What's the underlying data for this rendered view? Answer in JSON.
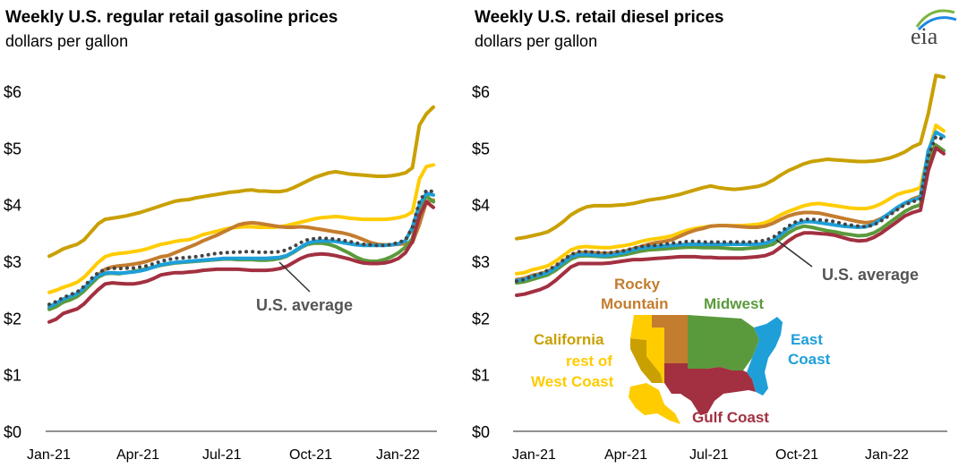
{
  "logo": {
    "text": "eia"
  },
  "colors": {
    "california": "#C9A000",
    "rest_west": "#FFCC00",
    "rocky": "#C47C2E",
    "midwest": "#5A9A3C",
    "east": "#1E9FD8",
    "gulf": "#A23040",
    "us": "#444444"
  },
  "map_labels": {
    "rocky": [
      "Rocky",
      "Mountain"
    ],
    "midwest": "Midwest",
    "east": [
      "East",
      "Coast"
    ],
    "california": "California",
    "rest_west": [
      "rest of",
      "West Coast"
    ],
    "gulf": "Gulf Coast"
  },
  "chart_data": [
    {
      "type": "line",
      "title": "Weekly U.S. regular retail gasoline prices",
      "subtitle": "dollars per gallon",
      "ylim": [
        0,
        6
      ],
      "yticks": [
        "$0",
        "$1",
        "$2",
        "$3",
        "$4",
        "$5",
        "$6"
      ],
      "xticks": [
        "Jan-21",
        "Apr-21",
        "Jul-21",
        "Oct-21",
        "Jan-22"
      ],
      "annotation": "U.S. average",
      "series": [
        {
          "key": "california",
          "values": [
            3.09,
            3.15,
            3.22,
            3.26,
            3.3,
            3.38,
            3.52,
            3.66,
            3.74,
            3.76,
            3.78,
            3.8,
            3.83,
            3.86,
            3.9,
            3.94,
            3.98,
            4.02,
            4.06,
            4.08,
            4.09,
            4.12,
            4.14,
            4.16,
            4.18,
            4.2,
            4.22,
            4.23,
            4.25,
            4.26,
            4.24,
            4.24,
            4.23,
            4.23,
            4.25,
            4.3,
            4.36,
            4.42,
            4.48,
            4.52,
            4.56,
            4.58,
            4.56,
            4.54,
            4.53,
            4.52,
            4.51,
            4.5,
            4.5,
            4.51,
            4.53,
            4.56,
            4.65,
            5.4,
            5.6,
            5.72
          ]
        },
        {
          "key": "rest_west",
          "values": [
            2.45,
            2.49,
            2.54,
            2.58,
            2.63,
            2.72,
            2.85,
            2.98,
            3.08,
            3.12,
            3.14,
            3.15,
            3.17,
            3.19,
            3.22,
            3.26,
            3.3,
            3.32,
            3.35,
            3.37,
            3.38,
            3.42,
            3.47,
            3.5,
            3.53,
            3.56,
            3.59,
            3.6,
            3.61,
            3.61,
            3.6,
            3.6,
            3.6,
            3.61,
            3.63,
            3.66,
            3.69,
            3.72,
            3.75,
            3.77,
            3.78,
            3.79,
            3.78,
            3.76,
            3.75,
            3.74,
            3.74,
            3.74,
            3.74,
            3.75,
            3.77,
            3.8,
            3.87,
            4.45,
            4.67,
            4.7
          ]
        },
        {
          "key": "rocky",
          "values": [
            2.18,
            2.22,
            2.28,
            2.33,
            2.38,
            2.48,
            2.62,
            2.76,
            2.86,
            2.9,
            2.92,
            2.93,
            2.95,
            2.97,
            3.0,
            3.04,
            3.08,
            3.1,
            3.15,
            3.2,
            3.25,
            3.3,
            3.36,
            3.41,
            3.46,
            3.52,
            3.58,
            3.64,
            3.67,
            3.68,
            3.67,
            3.65,
            3.63,
            3.61,
            3.6,
            3.6,
            3.61,
            3.6,
            3.58,
            3.56,
            3.54,
            3.52,
            3.5,
            3.47,
            3.43,
            3.38,
            3.33,
            3.3,
            3.29,
            3.29,
            3.3,
            3.31,
            3.33,
            3.65,
            4.05,
            4.08
          ]
        },
        {
          "key": "us",
          "values": [
            2.24,
            2.29,
            2.36,
            2.41,
            2.46,
            2.56,
            2.69,
            2.8,
            2.86,
            2.88,
            2.87,
            2.88,
            2.88,
            2.9,
            2.92,
            2.96,
            3.0,
            3.03,
            3.05,
            3.06,
            3.07,
            3.08,
            3.1,
            3.12,
            3.14,
            3.15,
            3.16,
            3.16,
            3.17,
            3.17,
            3.16,
            3.16,
            3.16,
            3.17,
            3.2,
            3.26,
            3.33,
            3.38,
            3.4,
            3.41,
            3.4,
            3.39,
            3.37,
            3.35,
            3.32,
            3.3,
            3.29,
            3.28,
            3.28,
            3.3,
            3.33,
            3.38,
            3.6,
            4.05,
            4.25,
            4.23
          ]
        },
        {
          "key": "east",
          "values": [
            2.2,
            2.26,
            2.33,
            2.38,
            2.43,
            2.53,
            2.65,
            2.75,
            2.79,
            2.8,
            2.79,
            2.8,
            2.81,
            2.83,
            2.86,
            2.9,
            2.94,
            2.96,
            2.98,
            2.99,
            3.0,
            3.01,
            3.02,
            3.03,
            3.04,
            3.05,
            3.05,
            3.05,
            3.05,
            3.05,
            3.05,
            3.05,
            3.06,
            3.07,
            3.1,
            3.17,
            3.25,
            3.32,
            3.35,
            3.36,
            3.36,
            3.35,
            3.33,
            3.31,
            3.29,
            3.28,
            3.28,
            3.28,
            3.28,
            3.29,
            3.31,
            3.36,
            3.6,
            4.0,
            4.2,
            4.17
          ]
        },
        {
          "key": "midwest",
          "values": [
            2.15,
            2.2,
            2.28,
            2.32,
            2.38,
            2.48,
            2.6,
            2.72,
            2.78,
            2.79,
            2.78,
            2.8,
            2.82,
            2.84,
            2.87,
            2.9,
            2.93,
            2.95,
            2.97,
            2.98,
            2.99,
            3.0,
            3.01,
            3.02,
            3.03,
            3.04,
            3.04,
            3.03,
            3.03,
            3.03,
            3.02,
            3.02,
            3.03,
            3.05,
            3.09,
            3.16,
            3.24,
            3.3,
            3.32,
            3.32,
            3.3,
            3.26,
            3.2,
            3.14,
            3.07,
            3.02,
            3.0,
            3.0,
            3.03,
            3.08,
            3.15,
            3.25,
            3.4,
            3.95,
            4.15,
            4.05
          ]
        },
        {
          "key": "gulf",
          "values": [
            1.93,
            1.98,
            2.08,
            2.12,
            2.16,
            2.25,
            2.38,
            2.5,
            2.6,
            2.62,
            2.61,
            2.6,
            2.6,
            2.62,
            2.65,
            2.7,
            2.76,
            2.78,
            2.8,
            2.8,
            2.81,
            2.82,
            2.84,
            2.85,
            2.86,
            2.86,
            2.86,
            2.86,
            2.85,
            2.84,
            2.84,
            2.84,
            2.85,
            2.87,
            2.91,
            2.98,
            3.05,
            3.1,
            3.12,
            3.13,
            3.12,
            3.1,
            3.07,
            3.04,
            3.0,
            2.97,
            2.96,
            2.96,
            2.97,
            3.0,
            3.05,
            3.15,
            3.35,
            3.8,
            4.05,
            3.95
          ]
        }
      ]
    },
    {
      "type": "line",
      "title": "Weekly U.S. retail diesel prices",
      "subtitle": "dollars per gallon",
      "ylim": [
        0,
        6
      ],
      "yticks": [
        "$0",
        "$1",
        "$2",
        "$3",
        "$4",
        "$5",
        "$6"
      ],
      "xticks": [
        "Jan-21",
        "Apr-21",
        "Jul-21",
        "Oct-21",
        "Jan-22"
      ],
      "annotation": "U.S. average",
      "series": [
        {
          "key": "california",
          "values": [
            3.4,
            3.42,
            3.45,
            3.48,
            3.52,
            3.6,
            3.7,
            3.82,
            3.9,
            3.96,
            3.98,
            3.98,
            3.98,
            3.99,
            4.0,
            4.02,
            4.05,
            4.08,
            4.1,
            4.12,
            4.15,
            4.18,
            4.22,
            4.26,
            4.3,
            4.33,
            4.3,
            4.28,
            4.27,
            4.28,
            4.3,
            4.32,
            4.36,
            4.43,
            4.52,
            4.6,
            4.66,
            4.72,
            4.76,
            4.78,
            4.8,
            4.79,
            4.78,
            4.77,
            4.76,
            4.76,
            4.77,
            4.79,
            4.82,
            4.87,
            4.93,
            5.02,
            5.08,
            5.6,
            6.28,
            6.25
          ]
        },
        {
          "key": "rest_west",
          "values": [
            2.78,
            2.8,
            2.85,
            2.88,
            2.92,
            3.0,
            3.1,
            3.2,
            3.25,
            3.26,
            3.25,
            3.24,
            3.24,
            3.26,
            3.28,
            3.31,
            3.35,
            3.38,
            3.4,
            3.42,
            3.45,
            3.5,
            3.55,
            3.58,
            3.6,
            3.62,
            3.63,
            3.63,
            3.63,
            3.63,
            3.64,
            3.65,
            3.68,
            3.74,
            3.82,
            3.88,
            3.93,
            3.98,
            4.01,
            4.02,
            4.0,
            3.98,
            3.96,
            3.94,
            3.93,
            3.93,
            3.96,
            4.02,
            4.1,
            4.18,
            4.22,
            4.25,
            4.3,
            4.9,
            5.4,
            5.3
          ]
        },
        {
          "key": "rocky",
          "values": [
            2.68,
            2.7,
            2.75,
            2.78,
            2.82,
            2.9,
            3.0,
            3.1,
            3.15,
            3.16,
            3.15,
            3.14,
            3.14,
            3.16,
            3.18,
            3.22,
            3.26,
            3.3,
            3.33,
            3.35,
            3.38,
            3.44,
            3.5,
            3.55,
            3.58,
            3.62,
            3.63,
            3.63,
            3.62,
            3.61,
            3.6,
            3.6,
            3.62,
            3.67,
            3.74,
            3.8,
            3.84,
            3.86,
            3.86,
            3.85,
            3.82,
            3.79,
            3.76,
            3.73,
            3.7,
            3.68,
            3.7,
            3.76,
            3.84,
            3.93,
            4.02,
            4.1,
            4.15,
            4.9,
            5.05,
            4.95
          ]
        },
        {
          "key": "us",
          "values": [
            2.65,
            2.68,
            2.74,
            2.78,
            2.84,
            2.92,
            3.02,
            3.12,
            3.17,
            3.17,
            3.16,
            3.15,
            3.15,
            3.17,
            3.19,
            3.23,
            3.26,
            3.28,
            3.28,
            3.3,
            3.32,
            3.33,
            3.35,
            3.35,
            3.34,
            3.34,
            3.34,
            3.34,
            3.34,
            3.34,
            3.34,
            3.35,
            3.37,
            3.42,
            3.52,
            3.62,
            3.7,
            3.74,
            3.74,
            3.73,
            3.72,
            3.7,
            3.66,
            3.64,
            3.62,
            3.61,
            3.64,
            3.72,
            3.81,
            3.91,
            4.0,
            4.05,
            4.1,
            4.85,
            5.2,
            5.15
          ]
        },
        {
          "key": "east",
          "values": [
            2.66,
            2.68,
            2.73,
            2.76,
            2.8,
            2.88,
            2.98,
            3.08,
            3.12,
            3.12,
            3.11,
            3.1,
            3.11,
            3.13,
            3.16,
            3.2,
            3.23,
            3.25,
            3.26,
            3.27,
            3.28,
            3.29,
            3.3,
            3.3,
            3.3,
            3.3,
            3.3,
            3.3,
            3.3,
            3.3,
            3.3,
            3.3,
            3.32,
            3.37,
            3.47,
            3.58,
            3.66,
            3.7,
            3.7,
            3.68,
            3.66,
            3.64,
            3.62,
            3.61,
            3.6,
            3.61,
            3.66,
            3.75,
            3.85,
            3.95,
            4.03,
            4.08,
            4.12,
            4.95,
            5.28,
            5.2
          ]
        },
        {
          "key": "midwest",
          "values": [
            2.62,
            2.64,
            2.68,
            2.72,
            2.76,
            2.84,
            2.94,
            3.04,
            3.09,
            3.1,
            3.09,
            3.08,
            3.08,
            3.1,
            3.12,
            3.15,
            3.18,
            3.2,
            3.21,
            3.22,
            3.23,
            3.24,
            3.25,
            3.25,
            3.24,
            3.24,
            3.24,
            3.23,
            3.22,
            3.22,
            3.23,
            3.24,
            3.26,
            3.3,
            3.4,
            3.5,
            3.58,
            3.62,
            3.6,
            3.57,
            3.54,
            3.52,
            3.49,
            3.47,
            3.45,
            3.46,
            3.5,
            3.58,
            3.68,
            3.78,
            3.88,
            3.95,
            4.0,
            4.8,
            5.05,
            4.95
          ]
        },
        {
          "key": "gulf",
          "values": [
            2.4,
            2.42,
            2.46,
            2.5,
            2.56,
            2.66,
            2.78,
            2.9,
            2.96,
            2.96,
            2.96,
            2.96,
            2.97,
            2.99,
            3.01,
            3.03,
            3.03,
            3.04,
            3.05,
            3.06,
            3.07,
            3.08,
            3.08,
            3.08,
            3.07,
            3.07,
            3.06,
            3.06,
            3.06,
            3.06,
            3.07,
            3.08,
            3.1,
            3.15,
            3.25,
            3.36,
            3.45,
            3.5,
            3.5,
            3.49,
            3.48,
            3.46,
            3.42,
            3.38,
            3.36,
            3.37,
            3.42,
            3.5,
            3.6,
            3.7,
            3.8,
            3.86,
            3.9,
            4.6,
            5.0,
            4.9
          ]
        }
      ]
    }
  ]
}
